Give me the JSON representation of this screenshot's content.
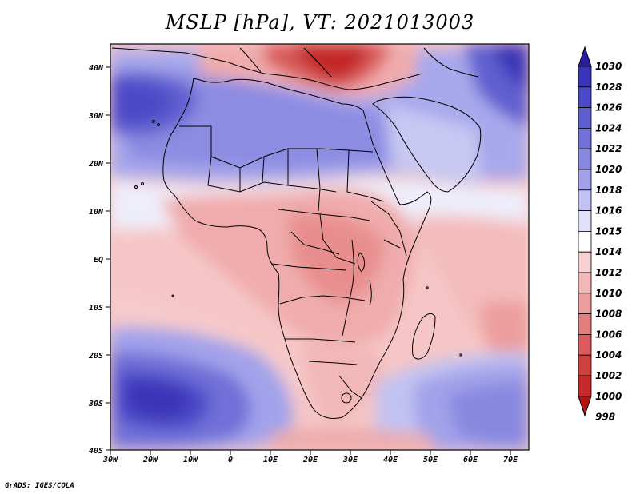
{
  "title": "MSLP [hPa], VT: 2021013003",
  "credit": "GrADS: IGES/COLA",
  "lat_labels": [
    "40N",
    "30N",
    "20N",
    "10N",
    "EQ",
    "10S",
    "20S",
    "30S",
    "40S"
  ],
  "lon_labels": [
    "30W",
    "20W",
    "10W",
    "0",
    "10E",
    "20E",
    "30E",
    "40E",
    "50E",
    "60E",
    "70E"
  ],
  "colorbar": {
    "levels": [
      "1030",
      "1028",
      "1026",
      "1024",
      "1022",
      "1020",
      "1018",
      "1016",
      "1015",
      "1014",
      "1012",
      "1010",
      "1008",
      "1006",
      "1004",
      "1002",
      "1000",
      "998"
    ],
    "colors": [
      "#2a1ea0",
      "#3a34b8",
      "#4c49c6",
      "#5e5ed0",
      "#7070d8",
      "#8888e0",
      "#a2a2ea",
      "#c2c2f2",
      "#e0e0f8",
      "#ffffff",
      "#f8d2d2",
      "#f2b8b8",
      "#ec9e9e",
      "#e47e7e",
      "#da5c5c",
      "#cf4040",
      "#c42828",
      "#b41414"
    ]
  },
  "regions": [
    {
      "name": "north-atlantic-high",
      "color": "#6e6ed6"
    },
    {
      "name": "saharan-high",
      "color": "#8a8ae2"
    },
    {
      "name": "mediterranean-low",
      "color": "#c42828"
    },
    {
      "name": "central-african-low",
      "color": "#f0acac"
    },
    {
      "name": "south-atlantic-high",
      "color": "#4c49c6"
    },
    {
      "name": "south-indian-high",
      "color": "#a2a2ea"
    },
    {
      "name": "asian-high",
      "color": "#3a34b8"
    }
  ]
}
